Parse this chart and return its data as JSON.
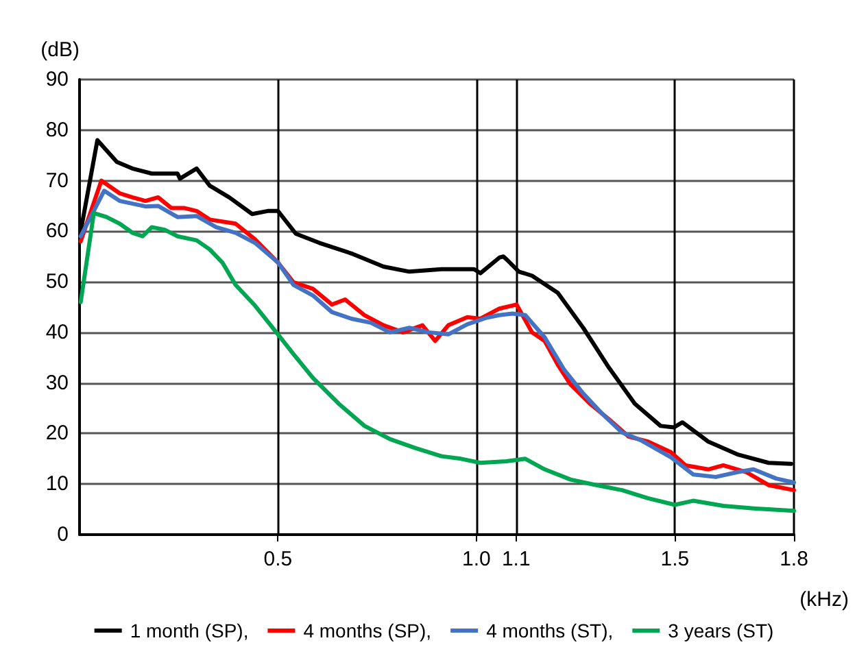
{
  "chart_data": {
    "type": "line",
    "xlabel": "(kHz)",
    "ylabel": "(dB)",
    "xlim": [
      0,
      1.8
    ],
    "xticks": [
      0.5,
      {
        "value": 1,
        "label": "1.0"
      },
      1.1,
      1.5,
      1.8
    ],
    "ylim": [
      0,
      90
    ],
    "yticks": [
      0,
      10,
      20,
      30,
      40,
      50,
      60,
      70,
      80,
      90
    ],
    "grid": true,
    "legend": "bottom",
    "marker": "none",
    "line_style": "solid",
    "series": [
      {
        "name": "1 month (SP),",
        "color": "#000000",
        "x": [
          0.003,
          0.045,
          0.094,
          0.133,
          0.182,
          0.247,
          0.253,
          0.295,
          0.328,
          0.377,
          0.435,
          0.474,
          0.5,
          0.545,
          0.604,
          0.685,
          0.766,
          0.831,
          0.912,
          0.994,
          1.01,
          1.058,
          1.068,
          1.075,
          1.107,
          1.14,
          1.205,
          1.269,
          1.334,
          1.399,
          1.464,
          1.497,
          1.519,
          1.584,
          1.66,
          1.736,
          1.793
        ],
        "values": [
          60,
          78,
          73.7,
          72.4,
          71.4,
          71.4,
          70.4,
          72.4,
          69,
          66.7,
          63.4,
          64,
          64,
          59.5,
          57.7,
          55.6,
          53,
          52,
          52.5,
          52.5,
          51.7,
          54.8,
          55,
          54.5,
          52,
          51.2,
          47.8,
          40.9,
          33,
          25.9,
          21.5,
          21.2,
          22.2,
          18.4,
          15.8,
          14.2,
          14
        ]
      },
      {
        "name": "4 months (SP),",
        "color": "#ff0000",
        "x": [
          0.003,
          0.055,
          0.101,
          0.133,
          0.166,
          0.198,
          0.231,
          0.263,
          0.295,
          0.328,
          0.393,
          0.442,
          0.5,
          0.539,
          0.588,
          0.636,
          0.669,
          0.718,
          0.766,
          0.815,
          0.864,
          0.896,
          0.929,
          0.977,
          1.01,
          1.058,
          1.101,
          1.14,
          1.172,
          1.205,
          1.237,
          1.286,
          1.334,
          1.383,
          1.432,
          1.49,
          1.527,
          1.584,
          1.622,
          1.679,
          1.736,
          1.8
        ],
        "values": [
          58,
          70,
          67.5,
          66.7,
          66,
          66.7,
          64.6,
          64.6,
          64,
          62.3,
          61.5,
          58.4,
          53.8,
          49.9,
          48.6,
          45.5,
          46.5,
          43.4,
          41.4,
          40,
          41.4,
          38.3,
          41.4,
          43,
          42.7,
          44.7,
          45.5,
          40,
          38.3,
          33.6,
          29.7,
          25.9,
          22.8,
          19.4,
          18.4,
          16.3,
          13.7,
          12.9,
          13.7,
          12.4,
          9.8,
          8.8
        ]
      },
      {
        "name": "4 months (ST),",
        "color": "#4472c4",
        "x": [
          0.003,
          0.062,
          0.101,
          0.166,
          0.198,
          0.247,
          0.295,
          0.344,
          0.393,
          0.442,
          0.5,
          0.539,
          0.588,
          0.636,
          0.685,
          0.734,
          0.782,
          0.831,
          0.88,
          0.929,
          0.977,
          1.026,
          1.058,
          1.091,
          1.123,
          1.172,
          1.221,
          1.269,
          1.318,
          1.367,
          1.416,
          1.49,
          1.546,
          1.603,
          1.66,
          1.698,
          1.755,
          1.8
        ],
        "values": [
          59,
          68,
          66,
          64.9,
          65,
          62.8,
          63,
          60.8,
          59.7,
          57.7,
          53.8,
          49.4,
          47.3,
          44,
          42.7,
          41.9,
          40,
          40.9,
          40,
          39.6,
          41.6,
          42.9,
          43.4,
          43.7,
          43.4,
          39,
          32.6,
          27.9,
          23.8,
          20.2,
          18.6,
          15.3,
          11.9,
          11.4,
          12.4,
          12.9,
          11.1,
          10.3
        ]
      },
      {
        "name": "3 years (ST)",
        "color": "#00a651",
        "x": [
          0.003,
          0.036,
          0.068,
          0.101,
          0.133,
          0.159,
          0.182,
          0.214,
          0.247,
          0.295,
          0.328,
          0.36,
          0.393,
          0.442,
          0.5,
          0.539,
          0.588,
          0.653,
          0.718,
          0.782,
          0.847,
          0.912,
          0.961,
          1.01,
          1.075,
          1.123,
          1.172,
          1.237,
          1.302,
          1.367,
          1.432,
          1.5,
          1.546,
          1.622,
          1.698,
          1.8
        ],
        "values": [
          46,
          63.6,
          62.8,
          61.5,
          59.7,
          59,
          60.8,
          60.3,
          59,
          58.2,
          56.4,
          53.8,
          49.4,
          45.3,
          39.6,
          35.7,
          31,
          25.9,
          21.5,
          18.9,
          17.1,
          15.5,
          15,
          14.2,
          14.5,
          15,
          12.9,
          10.9,
          9.8,
          8.8,
          7.2,
          5.9,
          6.7,
          5.7,
          5.2,
          4.7
        ]
      }
    ]
  }
}
